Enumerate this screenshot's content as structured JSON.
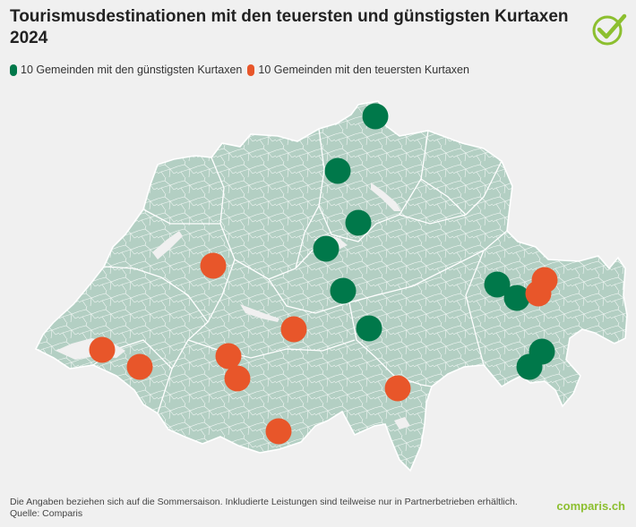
{
  "title": "Tourismusdestinationen mit den teuersten und günstigsten Kurtaxen 2024",
  "legend": [
    {
      "label": "10 Gemeinden mit den günstigsten Kurtaxen",
      "color": "#00784a"
    },
    {
      "label": "10 Gemeinden mit den teuersten Kurtaxen",
      "color": "#e8562a"
    }
  ],
  "colors": {
    "cheap": "#00784a",
    "expensive": "#e8562a",
    "land": "#b3cfc3",
    "border": "#ffffff",
    "lake": "#f0f0f0",
    "logo": "#8cbf2f"
  },
  "footer": {
    "note": "Die Angaben beziehen sich auf die Sommersaison. Inkludierte Leistungen sind teilweise nur in Partnerbetrieben erhältlich.",
    "source": "Quelle: Comparis"
  },
  "brand": "comparis.ch"
}
